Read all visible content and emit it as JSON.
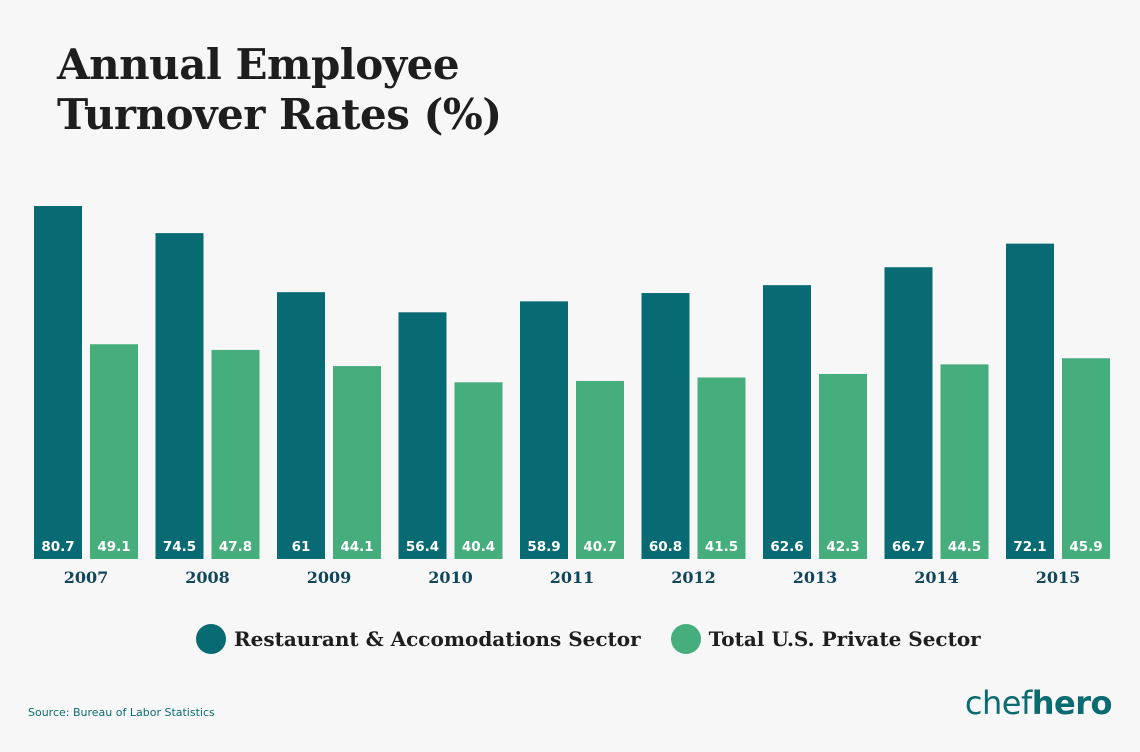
{
  "title_line1": "Annual Employee",
  "title_line2": "Turnover Rates (%)",
  "source": "Source: Bureau of Labor Statistics",
  "logo": {
    "part1": "chef",
    "part2": "hero"
  },
  "colors": {
    "restaurant": "#086a72",
    "private": "#46ae7c"
  },
  "chart_data": {
    "type": "bar",
    "title": "Annual Employee Turnover Rates (%)",
    "categories": [
      "2007",
      "2008",
      "2009",
      "2010",
      "2011",
      "2012",
      "2013",
      "2014",
      "2015"
    ],
    "series": [
      {
        "name": "Restaurant & Accomodations Sector",
        "values": [
          80.7,
          74.5,
          61,
          56.4,
          58.9,
          60.8,
          62.6,
          66.7,
          72.1
        ]
      },
      {
        "name": "Total U.S. Private Sector",
        "values": [
          49.1,
          47.8,
          44.1,
          40.4,
          40.7,
          41.5,
          42.3,
          44.5,
          45.9
        ]
      }
    ],
    "xlabel": "",
    "ylabel": "",
    "ylim": [
      0,
      80.7
    ],
    "grid": false,
    "legend": "bottom-center"
  }
}
